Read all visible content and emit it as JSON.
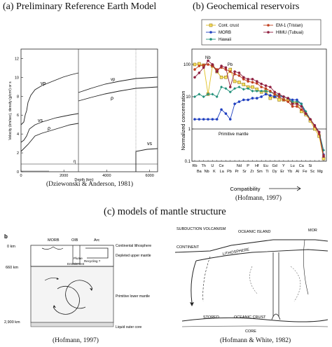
{
  "titles": {
    "a": "(a) Preliminary Reference Earth Model",
    "b": "(b) Geochemical reservoirs",
    "c": "(c) models of mantle structure"
  },
  "captions": {
    "a": "(Dziewonski & Anderson, 1981)",
    "b": "(Hofmann, 1997)",
    "c_left": "(Hofmann, 1997)",
    "c_right": "(Hofmann & White, 1982)"
  },
  "prem": {
    "ylabel": "Velocity (km/sec), density (g/cm³) or s",
    "xlabel": "Depth (km)",
    "yticks": [
      "0",
      "2",
      "4",
      "6",
      "8",
      "10",
      "12"
    ],
    "xticks": [
      "0",
      "2000",
      "4000",
      "6000"
    ],
    "labels": {
      "vp_mantle": "vp",
      "vs_mantle": "vs",
      "rho_mantle": "ρ",
      "vp_core": "vp",
      "rho_core": "ρ",
      "vs_core": "vs",
      "eta": "η"
    }
  },
  "chart_data": {
    "type": "line",
    "title": "",
    "xlabel": "Compatibility",
    "ylabel": "Normalized concentration",
    "yscale": "log",
    "ylim": [
      0.1,
      300
    ],
    "yticks": [
      "0.1",
      "1",
      "10",
      "100"
    ],
    "categories_top": [
      "Rb",
      "Th",
      "U",
      "Ce",
      "Nd",
      "P",
      "Hf",
      "Eu",
      "Gd",
      "Y",
      "Lu",
      "Ca",
      "Si"
    ],
    "categories_bottom": [
      "Ba",
      "Nb",
      "K",
      "La",
      "Pb",
      "Pr",
      "Sr",
      "Zr",
      "Sm",
      "Ti",
      "Dy",
      "Er",
      "Yb",
      "Al",
      "Fe",
      "Sc",
      "Mg"
    ],
    "categories": [
      "Rb",
      "Ba",
      "Th",
      "Nb",
      "U",
      "K",
      "Ce",
      "La",
      "Pb",
      "Pr",
      "Nd",
      "Sr",
      "P",
      "Zr",
      "Hf",
      "Sm",
      "Eu",
      "Ti",
      "Gd",
      "Dy",
      "Y",
      "Er",
      "Lu",
      "Yb",
      "Ca",
      "Al",
      "Si",
      "Fe",
      "Sc",
      "Mg"
    ],
    "reference_line": {
      "value": 1,
      "label": "Primitive mantle"
    },
    "annotations": [
      "Nb",
      "Pb"
    ],
    "legend_position": "top",
    "series": [
      {
        "name": "Cont. crust",
        "color": "#e0c020",
        "marker": "square",
        "values": [
          100,
          105,
          95,
          12,
          90,
          60,
          40,
          40,
          70,
          30,
          28,
          24,
          20,
          20,
          17,
          14,
          15,
          9,
          10,
          8,
          8,
          8,
          6.5,
          6.5,
          3.5,
          2.8,
          1.8,
          1.0,
          0.6,
          0.12
        ]
      },
      {
        "name": "MORB",
        "color": "#2040c0",
        "marker": "circle",
        "values": [
          2,
          2,
          2,
          2,
          2,
          2,
          4,
          3,
          2,
          6,
          7,
          8,
          8,
          9,
          9,
          10,
          12,
          11,
          10,
          10,
          10,
          9,
          8,
          8,
          6,
          3,
          2,
          1.2,
          0.8,
          0.16
        ]
      },
      {
        "name": "Hawaii",
        "color": "#20907a",
        "marker": "diamond",
        "values": [
          10,
          12,
          10,
          12,
          12,
          10,
          20,
          18,
          14,
          18,
          20,
          17,
          18,
          15,
          15,
          15,
          15,
          14,
          12,
          11,
          10,
          9,
          7,
          7,
          6,
          3.5,
          2,
          1.3,
          0.8,
          0.22
        ]
      },
      {
        "name": "EM-1 (Tristan)",
        "color": "#c04020",
        "marker": "circle",
        "values": [
          70,
          90,
          95,
          100,
          90,
          70,
          80,
          70,
          60,
          50,
          45,
          35,
          30,
          28,
          26,
          20,
          18,
          15,
          12,
          10,
          8,
          7,
          5,
          5,
          4,
          3,
          2,
          1.2,
          0.7,
          0.15
        ]
      },
      {
        "name": "HIMU (Tubuai)",
        "color": "#902040",
        "marker": "circle",
        "values": [
          40,
          55,
          80,
          130,
          100,
          60,
          90,
          80,
          20,
          60,
          55,
          40,
          35,
          35,
          30,
          25,
          22,
          20,
          14,
          12,
          10,
          9,
          6,
          6,
          5,
          3,
          2,
          1.3,
          0.8,
          0.14
        ]
      }
    ]
  },
  "left_model": {
    "panel_label": "b",
    "depths": [
      "0 km",
      "660 km",
      "2,900 km"
    ],
    "top_labels": [
      "MORB",
      "OIB",
      "Arc"
    ],
    "inner_labels": [
      "Plume",
      "Entrainment",
      "Recycling ?"
    ],
    "side_labels": [
      "Continental lithosphere",
      "Depleted upper mantle",
      "Primitive lower mantle",
      "Liquid outer core"
    ]
  },
  "right_model": {
    "labels": [
      "SUBDUCTION VOLCANISM",
      "OCEANIC ISLAND",
      "MOR",
      "CONTINENT",
      "LITHOSPHERE",
      "STORED",
      "OCEANIC CRUST",
      "CORE"
    ]
  }
}
